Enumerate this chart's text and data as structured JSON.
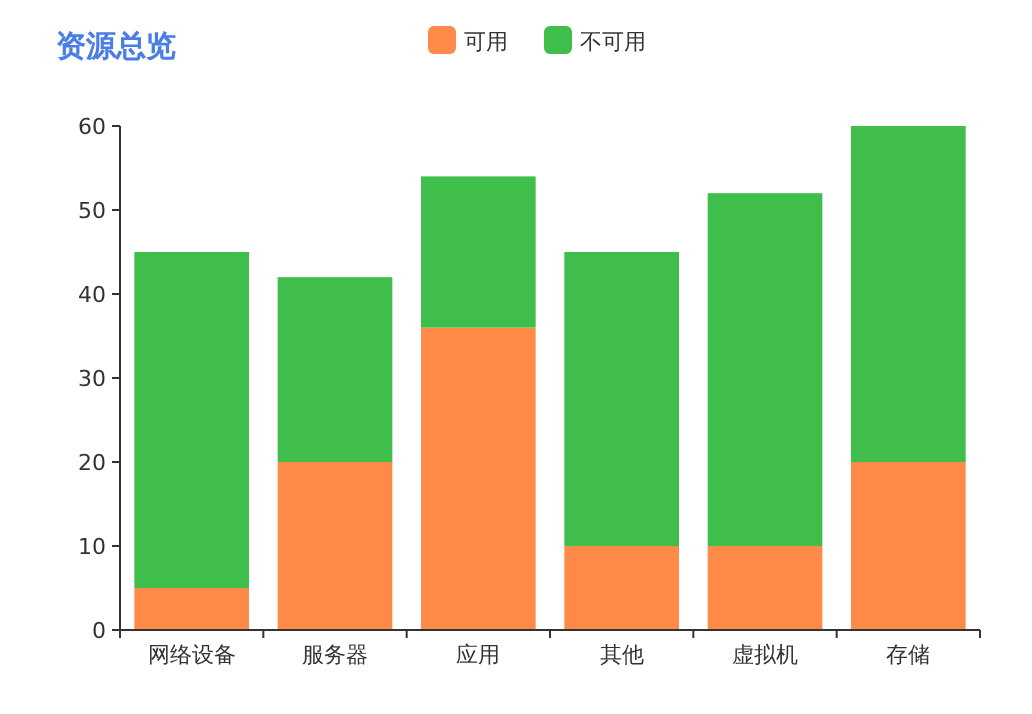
{
  "chart_data": {
    "type": "bar",
    "title": "资源总览",
    "stacked": true,
    "legend": "top",
    "grid": false,
    "categories": [
      "网络设备",
      "服务器",
      "应用",
      "其他",
      "虚拟机",
      "存储"
    ],
    "series": [
      {
        "name": "可用",
        "color": "#ff8a48",
        "values": [
          5,
          20,
          36,
          10,
          10,
          20
        ]
      },
      {
        "name": "不可用",
        "color": "#3fbe4b",
        "values": [
          40,
          22,
          18,
          35,
          42,
          40
        ]
      }
    ],
    "ylim": [
      0,
      60
    ],
    "yticks": [
      0,
      10,
      20,
      30,
      40,
      50,
      60
    ]
  }
}
